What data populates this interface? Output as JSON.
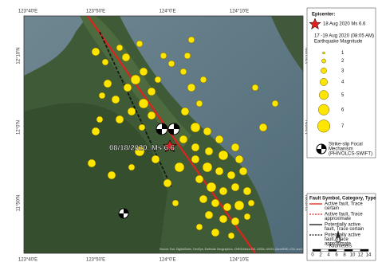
{
  "map": {
    "grid_labels": {
      "top": [
        "123°40'E",
        "123°50'E",
        "124°0'E",
        "124°10'E"
      ],
      "bottom": [
        "123°40'E",
        "123°50'E",
        "124°0'E",
        "124°10'E"
      ],
      "left": [
        "12°10'N",
        "12°0'N",
        "11°50'N"
      ],
      "right": [
        "12°10'N",
        "12°0'N",
        "11°50'N"
      ]
    },
    "event_label": "08/18/2020, Ms 6.6",
    "source": "Source: Esri, DigitalGlobe, GeoEye, Earthstar Geographics, CNES/Airbus DS, USDA, USGS, AeroGRID, IGN, and the GIS User Community"
  },
  "legend": {
    "epicenter_title": "Epicenter:",
    "epicenter_item": "18 Aug 2020 Ms 6.6",
    "aftershock_title": "17 -19 Aug 2020 (08:05 AM)",
    "magnitude_title": "Earthquake Magnitude",
    "magnitudes": [
      "1",
      "2",
      "3",
      "4",
      "5",
      "6",
      "7"
    ],
    "focal_lines": [
      "Strike-slip Focal",
      "Mechanism",
      "(PHIVOLCS-SWIFT)"
    ],
    "fault_title": "Fault Symbol, Category, Type",
    "faults": [
      [
        "Active fault, Trace",
        "certain"
      ],
      [
        "Active fault, Trace",
        "approximate"
      ],
      [
        "Potentially active",
        "fault, Trace certain"
      ],
      [
        "Potentially active",
        "fault, Trace",
        "approximate"
      ]
    ],
    "scale_ticks": [
      "0",
      "2",
      "4",
      "6",
      "8",
      "10",
      "12",
      "14"
    ],
    "scale_unit": "Kilometers"
  }
}
